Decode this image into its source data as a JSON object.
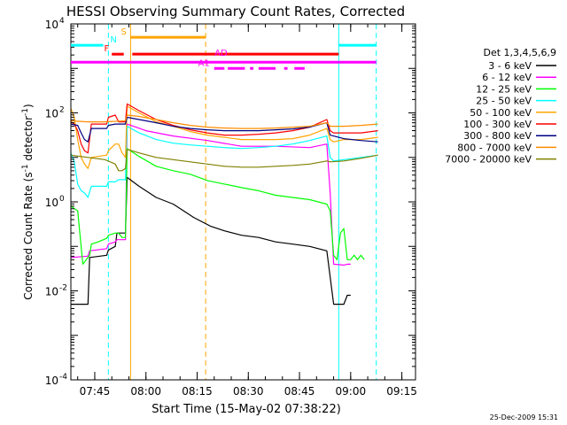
{
  "chart_data": {
    "type": "line",
    "title": "HESSI Observing Summary Count Rates, Corrected",
    "xlabel": "Start Time (15-May-02 07:38:22)",
    "ylabel_main": "Corrected Count Rate (s",
    "ylabel_sup1": "-1",
    "ylabel_mid": " detector",
    "ylabel_sup2": "-1",
    "ylabel_end": ")",
    "x_range_min": [
      0,
      101
    ],
    "y_log_range": [
      -4,
      4
    ],
    "x_ticks": [
      {
        "t": 7,
        "label": "07:45"
      },
      {
        "t": 22,
        "label": "08:00"
      },
      {
        "t": 37,
        "label": "08:15"
      },
      {
        "t": 52,
        "label": "08:30"
      },
      {
        "t": 67,
        "label": "08:45"
      },
      {
        "t": 82,
        "label": "09:00"
      },
      {
        "t": 97,
        "label": "09:15"
      }
    ],
    "y_ticks": [
      {
        "exp": 4,
        "base": "10",
        "sup": "4"
      },
      {
        "exp": 2,
        "base": "10",
        "sup": "2"
      },
      {
        "exp": 0,
        "base": "10",
        "sup": "0"
      },
      {
        "exp": -2,
        "base": "10",
        "sup": "-2"
      },
      {
        "exp": -4,
        "base": "10",
        "sup": "-4"
      }
    ],
    "legend_header": "Det 1,3,4,5,6,9",
    "legend_placement": "right",
    "series": [
      {
        "name": "3 - 6 keV",
        "color": "#000000",
        "points": [
          [
            0,
            -2.3
          ],
          [
            5,
            -2.3
          ],
          [
            5.5,
            -1.25
          ],
          [
            10.5,
            -1.2
          ],
          [
            11,
            -1.08
          ],
          [
            13,
            -1.0
          ],
          [
            13.5,
            -0.7
          ],
          [
            16,
            -0.7
          ],
          [
            16.5,
            0.55
          ],
          [
            20,
            0.35
          ],
          [
            25,
            0.1
          ],
          [
            30,
            -0.05
          ],
          [
            36,
            -0.35
          ],
          [
            41,
            -0.55
          ],
          [
            45,
            -0.65
          ],
          [
            50,
            -0.75
          ],
          [
            55,
            -0.8
          ],
          [
            60,
            -0.9
          ],
          [
            65,
            -0.95
          ],
          [
            70,
            -1.0
          ],
          [
            75,
            -1.1
          ],
          [
            77,
            -2.3
          ],
          [
            80,
            -2.3
          ],
          [
            81,
            -2.1
          ],
          [
            82,
            -2.1
          ]
        ]
      },
      {
        "name": "6 - 12 keV",
        "color": "#ff00ff",
        "points": [
          [
            0,
            -1.25
          ],
          [
            5,
            -1.22
          ],
          [
            5.5,
            -1.1
          ],
          [
            10.5,
            -1.05
          ],
          [
            11,
            -0.95
          ],
          [
            13,
            -0.9
          ],
          [
            13.5,
            -0.85
          ],
          [
            16,
            -0.85
          ],
          [
            16.5,
            1.75
          ],
          [
            22,
            1.6
          ],
          [
            30,
            1.48
          ],
          [
            40,
            1.38
          ],
          [
            50,
            1.25
          ],
          [
            60,
            1.25
          ],
          [
            70,
            1.22
          ],
          [
            75,
            1.3
          ],
          [
            76,
            0.2
          ],
          [
            77,
            -1.4
          ],
          [
            80,
            -1.42
          ],
          [
            81,
            -1.4
          ],
          [
            82,
            -1.4
          ]
        ]
      },
      {
        "name": "12 - 25 keV",
        "color": "#00ff00",
        "points": [
          [
            0,
            -0.1
          ],
          [
            2,
            -0.2
          ],
          [
            3.5,
            -1.4
          ],
          [
            5.5,
            -1.2
          ],
          [
            6,
            -0.95
          ],
          [
            8,
            -0.9
          ],
          [
            10.5,
            -0.82
          ],
          [
            11,
            -0.75
          ],
          [
            13,
            -0.7
          ],
          [
            14,
            -0.7
          ],
          [
            15,
            -0.8
          ],
          [
            16,
            -0.8
          ],
          [
            16.5,
            1.2
          ],
          [
            20,
            1.02
          ],
          [
            25,
            0.8
          ],
          [
            30,
            0.7
          ],
          [
            35,
            0.62
          ],
          [
            40,
            0.48
          ],
          [
            45,
            0.4
          ],
          [
            50,
            0.32
          ],
          [
            55,
            0.25
          ],
          [
            60,
            0.15
          ],
          [
            65,
            0.1
          ],
          [
            70,
            0.05
          ],
          [
            75,
            -0.05
          ],
          [
            76,
            -0.2
          ],
          [
            77,
            -1.2
          ],
          [
            78,
            -1.3
          ],
          [
            79,
            -0.7
          ],
          [
            80,
            -0.6
          ],
          [
            81,
            -1.3
          ],
          [
            82,
            -1.3
          ],
          [
            83,
            -1.2
          ],
          [
            84,
            -1.3
          ],
          [
            85,
            -1.2
          ],
          [
            86,
            -1.3
          ]
        ]
      },
      {
        "name": "25 - 50 keV",
        "color": "#00ffff",
        "points": [
          [
            0,
            1.1
          ],
          [
            1,
            0.9
          ],
          [
            2,
            0.4
          ],
          [
            3,
            0.25
          ],
          [
            4,
            0.2
          ],
          [
            5,
            0.1
          ],
          [
            6,
            0.35
          ],
          [
            10.5,
            0.35
          ],
          [
            11,
            0.45
          ],
          [
            13,
            0.45
          ],
          [
            14,
            0.5
          ],
          [
            15,
            0.5
          ],
          [
            16,
            0.5
          ],
          [
            16.5,
            1.7
          ],
          [
            20,
            1.55
          ],
          [
            25,
            1.4
          ],
          [
            30,
            1.32
          ],
          [
            35,
            1.28
          ],
          [
            40,
            1.25
          ],
          [
            45,
            1.22
          ],
          [
            50,
            1.2
          ],
          [
            55,
            1.22
          ],
          [
            60,
            1.25
          ],
          [
            65,
            1.3
          ],
          [
            70,
            1.38
          ],
          [
            75,
            1.48
          ],
          [
            76,
            1.0
          ],
          [
            77,
            0.92
          ],
          [
            80,
            0.95
          ],
          [
            85,
            1.0
          ],
          [
            90,
            1.05
          ]
        ]
      },
      {
        "name": "50 - 100 keV",
        "color": "#ffa500",
        "points": [
          [
            0,
            2.1
          ],
          [
            1,
            1.9
          ],
          [
            2,
            1.4
          ],
          [
            3,
            1.0
          ],
          [
            4,
            0.85
          ],
          [
            5,
            0.75
          ],
          [
            6,
            1.0
          ],
          [
            10.5,
            1.05
          ],
          [
            11,
            1.15
          ],
          [
            13,
            1.3
          ],
          [
            14,
            1.3
          ],
          [
            15,
            1.1
          ],
          [
            16,
            1.0
          ],
          [
            16.5,
            2.15
          ],
          [
            20,
            2.0
          ],
          [
            25,
            1.8
          ],
          [
            30,
            1.7
          ],
          [
            35,
            1.58
          ],
          [
            40,
            1.5
          ],
          [
            45,
            1.45
          ],
          [
            50,
            1.4
          ],
          [
            55,
            1.4
          ],
          [
            60,
            1.4
          ],
          [
            65,
            1.42
          ],
          [
            70,
            1.5
          ],
          [
            75,
            1.65
          ],
          [
            76,
            1.4
          ],
          [
            77,
            1.35
          ],
          [
            80,
            1.4
          ],
          [
            85,
            1.4
          ],
          [
            90,
            1.45
          ]
        ]
      },
      {
        "name": "100 - 300 keV",
        "color": "#ff0000",
        "points": [
          [
            0,
            1.8
          ],
          [
            1,
            1.75
          ],
          [
            2,
            1.6
          ],
          [
            3,
            1.3
          ],
          [
            4,
            1.15
          ],
          [
            5,
            1.1
          ],
          [
            6,
            1.75
          ],
          [
            10.5,
            1.75
          ],
          [
            11,
            1.9
          ],
          [
            13,
            1.95
          ],
          [
            14,
            1.8
          ],
          [
            15,
            1.8
          ],
          [
            16,
            1.8
          ],
          [
            16.5,
            2.2
          ],
          [
            20,
            2.05
          ],
          [
            25,
            1.85
          ],
          [
            30,
            1.72
          ],
          [
            35,
            1.62
          ],
          [
            40,
            1.55
          ],
          [
            45,
            1.5
          ],
          [
            50,
            1.5
          ],
          [
            55,
            1.52
          ],
          [
            60,
            1.55
          ],
          [
            65,
            1.6
          ],
          [
            70,
            1.68
          ],
          [
            75,
            1.85
          ],
          [
            76,
            1.6
          ],
          [
            77,
            1.55
          ],
          [
            80,
            1.55
          ],
          [
            85,
            1.55
          ],
          [
            90,
            1.6
          ]
        ]
      },
      {
        "name": "300 - 800 keV",
        "color": "#000080",
        "points": [
          [
            0,
            1.75
          ],
          [
            2,
            1.72
          ],
          [
            3,
            1.55
          ],
          [
            4,
            1.4
          ],
          [
            5,
            1.35
          ],
          [
            6,
            1.65
          ],
          [
            10.5,
            1.65
          ],
          [
            11,
            1.72
          ],
          [
            13,
            1.75
          ],
          [
            16,
            1.75
          ],
          [
            16.5,
            1.9
          ],
          [
            20,
            1.85
          ],
          [
            25,
            1.78
          ],
          [
            30,
            1.7
          ],
          [
            35,
            1.65
          ],
          [
            40,
            1.62
          ],
          [
            45,
            1.6
          ],
          [
            50,
            1.6
          ],
          [
            55,
            1.6
          ],
          [
            60,
            1.62
          ],
          [
            65,
            1.64
          ],
          [
            70,
            1.68
          ],
          [
            75,
            1.78
          ],
          [
            76,
            1.5
          ],
          [
            80,
            1.42
          ],
          [
            85,
            1.38
          ],
          [
            90,
            1.35
          ]
        ]
      },
      {
        "name": "800 - 7000 keV",
        "color": "#ff8c00",
        "points": [
          [
            0,
            1.82
          ],
          [
            5,
            1.8
          ],
          [
            10,
            1.8
          ],
          [
            16,
            1.82
          ],
          [
            16.5,
            1.95
          ],
          [
            20,
            1.92
          ],
          [
            25,
            1.85
          ],
          [
            30,
            1.78
          ],
          [
            35,
            1.72
          ],
          [
            40,
            1.68
          ],
          [
            45,
            1.66
          ],
          [
            50,
            1.65
          ],
          [
            55,
            1.65
          ],
          [
            60,
            1.66
          ],
          [
            65,
            1.68
          ],
          [
            70,
            1.7
          ],
          [
            75,
            1.78
          ],
          [
            76,
            1.7
          ],
          [
            80,
            1.7
          ],
          [
            85,
            1.72
          ],
          [
            90,
            1.75
          ]
        ]
      },
      {
        "name": "7000 - 20000 keV",
        "color": "#808000",
        "points": [
          [
            0,
            1.05
          ],
          [
            5,
            1.0
          ],
          [
            10,
            0.95
          ],
          [
            13,
            0.85
          ],
          [
            14,
            0.7
          ],
          [
            15,
            0.7
          ],
          [
            16,
            0.75
          ],
          [
            16.5,
            1.18
          ],
          [
            20,
            1.1
          ],
          [
            25,
            1.0
          ],
          [
            30,
            0.95
          ],
          [
            35,
            0.9
          ],
          [
            40,
            0.85
          ],
          [
            45,
            0.8
          ],
          [
            50,
            0.78
          ],
          [
            55,
            0.78
          ],
          [
            60,
            0.8
          ],
          [
            65,
            0.82
          ],
          [
            70,
            0.85
          ],
          [
            75,
            0.92
          ],
          [
            76,
            0.9
          ],
          [
            80,
            0.92
          ],
          [
            85,
            0.98
          ],
          [
            90,
            1.05
          ]
        ]
      }
    ],
    "vlines": [
      {
        "t": 0,
        "color": "#00ffff",
        "dash": false
      },
      {
        "t": 11,
        "color": "#00ffff",
        "dash": true
      },
      {
        "t": 17.5,
        "color": "#ffa500",
        "dash": false
      },
      {
        "t": 39.5,
        "color": "#ffa500",
        "dash": true
      },
      {
        "t": 78.5,
        "color": "#00ffff",
        "dash": false
      },
      {
        "t": 89.5,
        "color": "#00ffff",
        "dash": true
      }
    ],
    "flags": [
      {
        "label": "",
        "color": "#00ffff",
        "logy": 3.52,
        "segments": [
          [
            0,
            9.5
          ],
          [
            78.5,
            89.5
          ]
        ]
      },
      {
        "label": "N",
        "color": "#00ffff",
        "logy": 3.52,
        "label_t": 12.5,
        "segments": []
      },
      {
        "label": "S",
        "color": "#ffa500",
        "logy": 3.7,
        "label_t": 15.5,
        "segments": [
          [
            17.5,
            39.5
          ]
        ]
      },
      {
        "label": "F",
        "color": "#ff0000",
        "logy": 3.32,
        "label_t": 10.5,
        "segments": [
          [
            12.0,
            15.5
          ],
          [
            18.0,
            78.5
          ]
        ]
      },
      {
        "label": "AD",
        "color": "#ff00ff",
        "logy": 3.22,
        "label_t": 44.0,
        "segments": []
      },
      {
        "label": "",
        "color": "#ff00ff",
        "logy": 3.14,
        "segments": [
          [
            0,
            89.5
          ]
        ]
      },
      {
        "label": "A1",
        "color": "#ff00ff",
        "logy": 3.0,
        "label_t": 39.0,
        "segments": [
          [
            42.0,
            45.0
          ],
          [
            46.0,
            51.0
          ],
          [
            52.5,
            53.5
          ],
          [
            55.0,
            60.0
          ],
          [
            62.5,
            63.5
          ],
          [
            65.5,
            68.5
          ]
        ]
      }
    ]
  },
  "footer": {
    "date_stamp": "25-Dec-2009 15:31"
  }
}
